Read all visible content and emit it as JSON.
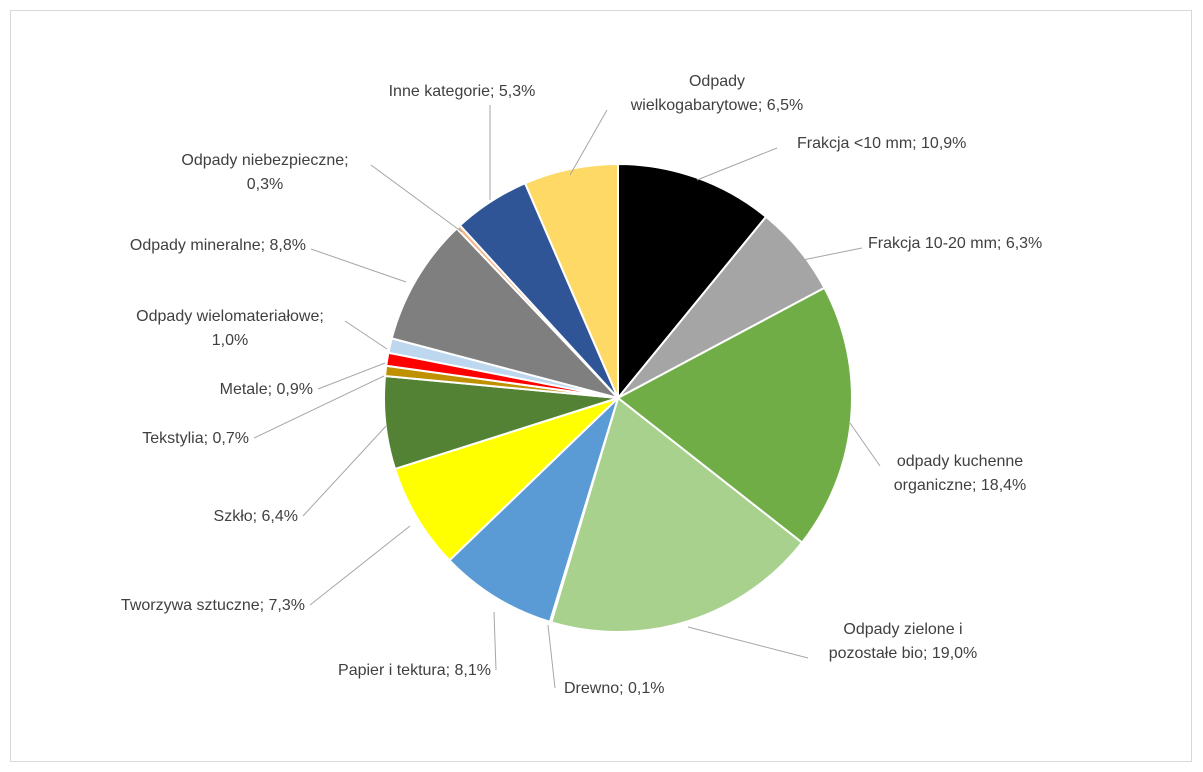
{
  "chart_data": {
    "type": "pie",
    "title": "",
    "legend": "none",
    "start_angle_deg": 0,
    "direction": "clockwise",
    "slices": [
      {
        "label_lines": [
          "Frakcja <10 mm; 10,9%"
        ],
        "name": "Frakcja <10 mm",
        "value": 10.9,
        "color": "#000000"
      },
      {
        "label_lines": [
          "Frakcja 10-20 mm; 6,3%"
        ],
        "name": "Frakcja 10-20 mm",
        "value": 6.3,
        "color": "#a5a5a5"
      },
      {
        "label_lines": [
          "odpady kuchenne",
          "organiczne; 18,4%"
        ],
        "name": "odpady kuchenne organiczne",
        "value": 18.4,
        "color": "#70ad47"
      },
      {
        "label_lines": [
          "Odpady zielone i",
          "pozostałe bio; 19,0%"
        ],
        "name": "Odpady zielone i pozostałe bio",
        "value": 19.0,
        "color": "#a9d18e"
      },
      {
        "label_lines": [
          "Drewno; 0,1%"
        ],
        "name": "Drewno",
        "value": 0.1,
        "color": "#c55a11"
      },
      {
        "label_lines": [
          "Papier i tektura; 8,1%"
        ],
        "name": "Papier i tektura",
        "value": 8.1,
        "color": "#5b9bd5"
      },
      {
        "label_lines": [
          "Tworzywa sztuczne; 7,3%"
        ],
        "name": "Tworzywa sztuczne",
        "value": 7.3,
        "color": "#ffff00"
      },
      {
        "label_lines": [
          "Szkło; 6,4%"
        ],
        "name": "Szkło",
        "value": 6.4,
        "color": "#548235"
      },
      {
        "label_lines": [
          "Tekstylia; 0,7%"
        ],
        "name": "Tekstylia",
        "value": 0.7,
        "color": "#bf9000"
      },
      {
        "label_lines": [
          "Metale; 0,9%"
        ],
        "name": "Metale",
        "value": 0.9,
        "color": "#ff0000"
      },
      {
        "label_lines": [
          "Odpady wielomateriałowe;",
          "1,0%"
        ],
        "name": "Odpady wielomateriałowe",
        "value": 1.0,
        "color": "#bdd7ee"
      },
      {
        "label_lines": [
          "Odpady mineralne; 8,8%"
        ],
        "name": "Odpady mineralne",
        "value": 8.8,
        "color": "#7f7f7f"
      },
      {
        "label_lines": [
          "Odpady niebezpieczne;",
          "0,3%"
        ],
        "name": "Odpady niebezpieczne",
        "value": 0.3,
        "color": "#f4b183"
      },
      {
        "label_lines": [
          "Inne kategorie; 5,3%"
        ],
        "name": "Inne kategorie",
        "value": 5.3,
        "color": "#2f5597"
      },
      {
        "label_lines": [
          "Odpady",
          "wielkogabarytowe; 6,5%"
        ],
        "name": "Odpady wielkogabarytowe",
        "value": 6.5,
        "color": "#ffd966"
      }
    ]
  }
}
